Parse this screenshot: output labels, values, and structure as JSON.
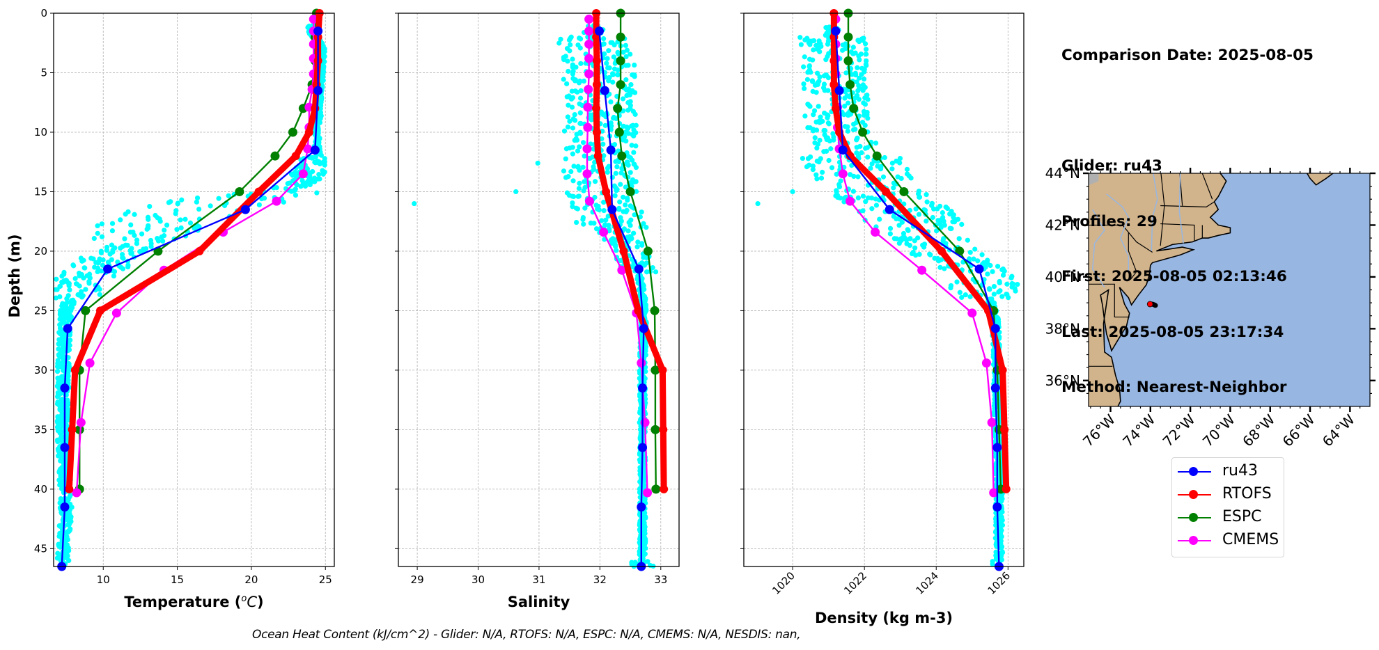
{
  "info": {
    "comparison_date": "Comparison Date: 2025-08-05",
    "glider": "Glider: ru43",
    "profiles": "Profiles: 29",
    "first": "First: 2025-08-05 02:13:46",
    "last": "Last: 2025-08-05 23:17:34",
    "method": "Method: Nearest-Neighbor"
  },
  "footer": "Ocean Heat Content (kJ/cm^2) - Glider: N/A,  RTOFS: N/A,  ESPC: N/A,  CMEMS: N/A,  NESDIS: nan,",
  "colors": {
    "ru43": "#0000ff",
    "RTOFS": "#ff0000",
    "ESPC": "#008000",
    "CMEMS": "#ff00ff",
    "glider_scatter": "#00ffff",
    "land": "#d2b48c",
    "ocean": "#97b6e1"
  },
  "legend": [
    {
      "name": "ru43",
      "color": "#0000ff"
    },
    {
      "name": "RTOFS",
      "color": "#ff0000"
    },
    {
      "name": "ESPC",
      "color": "#008000"
    },
    {
      "name": "CMEMS",
      "color": "#ff00ff"
    }
  ],
  "chart_data": [
    {
      "type": "line",
      "id": "temperature",
      "title": "",
      "xlabel": "Temperature (°C)",
      "ylabel": "Depth (m)",
      "xlim": [
        6.65,
        25.6
      ],
      "ylim": [
        46.5,
        0
      ],
      "xticks": [
        10,
        15,
        20,
        25
      ],
      "yticks": [
        0,
        5,
        10,
        15,
        20,
        25,
        30,
        35,
        40,
        45
      ],
      "grid": true,
      "scatter": {
        "name": "glider profiles",
        "profile": [
          [
            1.5,
            24.2
          ],
          [
            3,
            24.8
          ],
          [
            5,
            24.7
          ],
          [
            7,
            24.6
          ],
          [
            9,
            24.5
          ],
          [
            11,
            24.4
          ],
          [
            12,
            24.6
          ],
          [
            13,
            24.0
          ],
          [
            14,
            23.5
          ],
          [
            15,
            22.0
          ],
          [
            15.5,
            19.5
          ],
          [
            16,
            18.0
          ],
          [
            16.5,
            16.0
          ],
          [
            17,
            15.0
          ],
          [
            17.5,
            14.0
          ],
          [
            18,
            13.0
          ],
          [
            19,
            12.5
          ],
          [
            20,
            11.0
          ],
          [
            21,
            10.0
          ],
          [
            22,
            9.0
          ],
          [
            23,
            8.0
          ],
          [
            24,
            7.7
          ],
          [
            25,
            7.5
          ],
          [
            27,
            7.4
          ],
          [
            30,
            7.3
          ],
          [
            33,
            7.3
          ],
          [
            36,
            7.3
          ],
          [
            39,
            7.4
          ],
          [
            42,
            7.5
          ],
          [
            45,
            7.3
          ]
        ],
        "spread": [
          [
            0,
            2,
            0.4
          ],
          [
            12,
            15,
            1.2
          ],
          [
            15,
            19,
            4.0
          ],
          [
            19,
            24,
            2.0
          ],
          [
            24,
            46,
            0.4
          ]
        ]
      },
      "series": [
        {
          "name": "ru43",
          "depth": [
            1.5,
            6.5,
            11.5,
            16.5,
            21.5,
            26.5,
            31.5,
            36.5,
            41.5,
            46.5
          ],
          "values": [
            24.5,
            24.5,
            24.3,
            19.6,
            10.3,
            7.6,
            7.4,
            7.4,
            7.4,
            7.2
          ]
        },
        {
          "name": "RTOFS",
          "depth": [
            0,
            2,
            4,
            6,
            8,
            10,
            12,
            15,
            20,
            25,
            30,
            35,
            40
          ],
          "values": [
            24.6,
            24.5,
            24.5,
            24.4,
            24.3,
            23.9,
            23.0,
            20.5,
            16.5,
            9.8,
            8.1,
            7.9,
            7.7
          ]
        },
        {
          "name": "ESPC",
          "depth": [
            0,
            2,
            4,
            6,
            8,
            10,
            12,
            15,
            20,
            25,
            30,
            35,
            40
          ],
          "values": [
            24.4,
            24.3,
            24.3,
            24.1,
            23.5,
            22.8,
            21.6,
            19.2,
            13.7,
            8.8,
            8.4,
            8.4,
            8.4
          ]
        },
        {
          "name": "CMEMS",
          "depth": [
            0.5,
            1.5,
            2.6,
            3.8,
            5.1,
            6.4,
            7.9,
            9.6,
            11.4,
            13.5,
            15.8,
            18.4,
            21.6,
            25.2,
            29.4,
            34.4,
            40.3
          ],
          "values": [
            24.2,
            24.2,
            24.2,
            24.2,
            24.2,
            24.1,
            23.9,
            23.9,
            23.8,
            23.5,
            21.7,
            18.1,
            14.1,
            10.9,
            9.1,
            8.5,
            8.2
          ]
        }
      ]
    },
    {
      "type": "line",
      "id": "salinity",
      "title": "",
      "xlabel": "Salinity",
      "ylabel": "",
      "xlim": [
        28.69,
        33.3
      ],
      "ylim": [
        46.5,
        0
      ],
      "xticks": [
        29,
        30,
        31,
        32,
        33
      ],
      "yticks": [
        0,
        5,
        10,
        15,
        20,
        25,
        30,
        35,
        40,
        45
      ],
      "grid": true,
      "scatter": {
        "name": "glider profiles",
        "profile": [
          [
            2,
            31.9
          ],
          [
            4,
            32.0
          ],
          [
            6,
            32.0
          ],
          [
            8,
            32.0
          ],
          [
            10,
            32.0
          ],
          [
            12,
            32.0
          ],
          [
            14,
            32.0
          ],
          [
            16,
            32.1
          ],
          [
            18,
            32.2
          ],
          [
            20,
            32.5
          ],
          [
            22,
            32.65
          ],
          [
            24,
            32.7
          ],
          [
            26,
            32.72
          ],
          [
            30,
            32.7
          ],
          [
            35,
            32.7
          ],
          [
            40,
            32.7
          ],
          [
            45,
            32.7
          ]
        ],
        "spread": [
          [
            2,
            18,
            0.6
          ],
          [
            18,
            22,
            0.3
          ],
          [
            22,
            46,
            0.05
          ]
        ],
        "outliers": [
          [
            16,
            28.95
          ],
          [
            15,
            30.62
          ],
          [
            12.6,
            30.98
          ]
        ]
      },
      "series": [
        {
          "name": "ru43",
          "depth": [
            1.5,
            6.5,
            11.5,
            16.5,
            21.5,
            26.5,
            31.5,
            36.5,
            41.5,
            46.5
          ],
          "values": [
            31.99,
            32.08,
            32.18,
            32.2,
            32.64,
            32.72,
            32.7,
            32.7,
            32.68,
            32.68
          ]
        },
        {
          "name": "RTOFS",
          "depth": [
            0,
            2,
            4,
            6,
            8,
            10,
            12,
            15,
            20,
            25,
            30,
            35,
            40
          ],
          "values": [
            31.94,
            31.94,
            31.95,
            31.95,
            31.94,
            31.95,
            31.97,
            32.1,
            32.39,
            32.63,
            33.03,
            33.04,
            33.05
          ]
        },
        {
          "name": "ESPC",
          "depth": [
            0,
            2,
            4,
            6,
            8,
            10,
            12,
            15,
            20,
            25,
            30,
            35,
            40
          ],
          "values": [
            32.34,
            32.34,
            32.34,
            32.34,
            32.29,
            32.32,
            32.36,
            32.5,
            32.79,
            32.9,
            32.91,
            32.91,
            32.92
          ]
        },
        {
          "name": "CMEMS",
          "depth": [
            0.5,
            1.5,
            2.6,
            3.8,
            5.1,
            6.4,
            7.9,
            9.6,
            11.4,
            13.5,
            15.8,
            18.4,
            21.6,
            25.2,
            29.4,
            34.4,
            40.3
          ],
          "values": [
            31.82,
            31.82,
            31.82,
            31.82,
            31.82,
            31.81,
            31.8,
            31.8,
            31.79,
            31.79,
            31.83,
            32.06,
            32.36,
            32.6,
            32.68,
            32.74,
            32.78
          ]
        }
      ]
    },
    {
      "type": "line",
      "id": "density",
      "title": "",
      "xlabel": "Density (kg m-3)",
      "ylabel": "",
      "xlim": [
        1018.64,
        1026.44
      ],
      "ylim": [
        46.5,
        0
      ],
      "xticks": [
        1020,
        1022,
        1024,
        1026
      ],
      "yticks": [
        0,
        5,
        10,
        15,
        20,
        25,
        30,
        35,
        40,
        45
      ],
      "grid": true,
      "scatter": {
        "name": "glider profiles",
        "profile": [
          [
            2,
            1021.1
          ],
          [
            4,
            1021.2
          ],
          [
            6,
            1021.2
          ],
          [
            8,
            1021.2
          ],
          [
            10,
            1021.3
          ],
          [
            12,
            1021.6
          ],
          [
            14,
            1022.0
          ],
          [
            16,
            1022.8
          ],
          [
            18,
            1023.5
          ],
          [
            20,
            1024.2
          ],
          [
            22,
            1025.2
          ],
          [
            24,
            1025.5
          ],
          [
            26,
            1025.65
          ],
          [
            30,
            1025.7
          ],
          [
            35,
            1025.7
          ],
          [
            40,
            1025.75
          ],
          [
            45,
            1025.75
          ]
        ],
        "spread": [
          [
            2,
            12,
            0.9
          ],
          [
            12,
            18,
            1.4
          ],
          [
            18,
            24,
            1.0
          ],
          [
            24,
            46,
            0.1
          ]
        ],
        "outliers": [
          [
            16,
            1019.03
          ],
          [
            15,
            1020.0
          ]
        ]
      },
      "series": [
        {
          "name": "ru43",
          "depth": [
            1.5,
            6.5,
            11.5,
            16.5,
            21.5,
            26.5,
            31.5,
            36.5,
            41.5,
            46.5
          ],
          "values": [
            1021.2,
            1021.3,
            1021.4,
            1022.7,
            1025.2,
            1025.65,
            1025.65,
            1025.7,
            1025.7,
            1025.75
          ]
        },
        {
          "name": "RTOFS",
          "depth": [
            0,
            2,
            4,
            6,
            8,
            10,
            12,
            15,
            20,
            25,
            30,
            35,
            40
          ],
          "values": [
            1021.15,
            1021.15,
            1021.15,
            1021.15,
            1021.2,
            1021.3,
            1021.6,
            1022.6,
            1024.15,
            1025.45,
            1025.85,
            1025.9,
            1025.95
          ]
        },
        {
          "name": "ESPC",
          "depth": [
            0,
            2,
            4,
            6,
            8,
            10,
            12,
            15,
            20,
            25,
            30,
            35,
            40
          ],
          "values": [
            1021.55,
            1021.55,
            1021.55,
            1021.6,
            1021.7,
            1021.95,
            1022.35,
            1023.1,
            1024.65,
            1025.6,
            1025.7,
            1025.75,
            1025.8
          ]
        },
        {
          "name": "CMEMS",
          "depth": [
            0.5,
            1.5,
            2.6,
            3.8,
            5.1,
            6.4,
            7.9,
            9.6,
            11.4,
            13.5,
            15.8,
            18.4,
            21.6,
            25.2,
            29.4,
            34.4,
            40.3
          ],
          "values": [
            1021.2,
            1021.2,
            1021.2,
            1021.2,
            1021.2,
            1021.2,
            1021.25,
            1021.25,
            1021.3,
            1021.4,
            1021.6,
            1022.3,
            1023.6,
            1025.0,
            1025.4,
            1025.55,
            1025.6
          ]
        }
      ]
    },
    {
      "type": "map",
      "id": "location-map",
      "lon_range": [
        -77.1,
        -63.0
      ],
      "lat_range": [
        35.0,
        44.0
      ],
      "lat_ticks": [
        36,
        38,
        40,
        42,
        44
      ],
      "lat_tick_labels": [
        "36°N",
        "38°N",
        "40°N",
        "42°N",
        "44°N"
      ],
      "lon_ticks": [
        -76,
        -74,
        -72,
        -70,
        -68,
        -66,
        -64
      ],
      "lon_tick_labels": [
        "76°W",
        "74°W",
        "72°W",
        "70°W",
        "68°W",
        "66°W",
        "64°W"
      ],
      "glider_track": [
        [
          -73.9,
          38.95
        ],
        [
          -73.8,
          38.92
        ],
        [
          -73.75,
          38.9
        ]
      ],
      "glider_marker": {
        "lon": -74.02,
        "lat": 38.95,
        "color": "#ff0000"
      }
    }
  ]
}
